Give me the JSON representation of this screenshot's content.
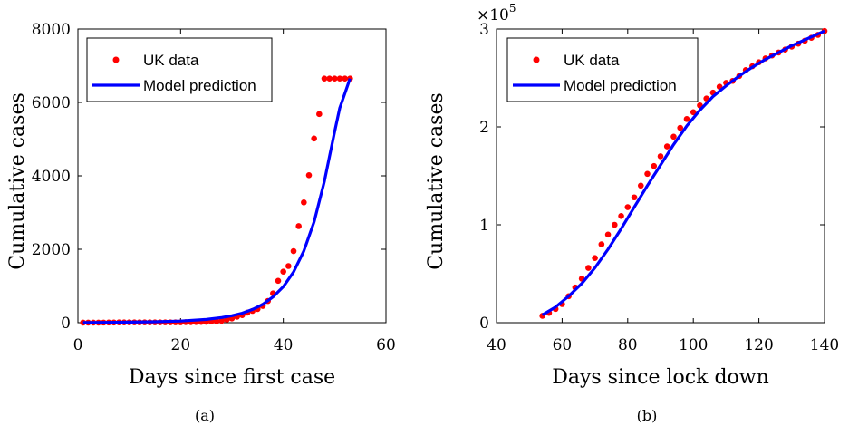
{
  "chart_data": [
    {
      "type": "scatter",
      "panel_label": "(a)",
      "xlabel": "Days since first case",
      "ylabel": "Cumulative cases",
      "xlim": [
        0,
        60
      ],
      "ylim": [
        0,
        8000
      ],
      "xticks": [
        0,
        20,
        40,
        60
      ],
      "yticks": [
        0,
        2000,
        4000,
        6000,
        8000
      ],
      "y_exponent_label": "",
      "grid": false,
      "legend_position": "top-left",
      "series": [
        {
          "name": "UK data",
          "style": "markers",
          "color": "#ff0000",
          "x": [
            1,
            2,
            3,
            4,
            5,
            6,
            7,
            8,
            9,
            10,
            11,
            12,
            13,
            14,
            15,
            16,
            17,
            18,
            19,
            20,
            21,
            22,
            23,
            24,
            25,
            26,
            27,
            28,
            29,
            30,
            31,
            32,
            33,
            34,
            35,
            36,
            37,
            38,
            39,
            40,
            41,
            42,
            43,
            44,
            45,
            46,
            47,
            48,
            49,
            50,
            51,
            52,
            53
          ],
          "y": [
            2,
            2,
            2,
            2,
            3,
            4,
            4,
            8,
            8,
            9,
            9,
            9,
            9,
            9,
            9,
            9,
            9,
            9,
            9,
            9,
            13,
            15,
            16,
            20,
            23,
            36,
            40,
            51,
            85,
            115,
            163,
            206,
            273,
            321,
            373,
            456,
            590,
            798,
            1140,
            1391,
            1543,
            1950,
            2630,
            3277,
            4017,
            5018,
            5683,
            6650,
            6650,
            6650,
            6650,
            6650,
            6650
          ]
        },
        {
          "name": "Model prediction",
          "style": "line",
          "color": "#0000ff",
          "x": [
            1,
            5,
            10,
            15,
            20,
            25,
            28,
            30,
            32,
            34,
            36,
            38,
            40,
            42,
            44,
            46,
            48,
            50,
            51,
            52,
            53
          ],
          "y": [
            5,
            8,
            14,
            25,
            45,
            90,
            140,
            190,
            260,
            360,
            500,
            700,
            980,
            1380,
            1950,
            2750,
            3850,
            5200,
            5850,
            6250,
            6650
          ]
        }
      ]
    },
    {
      "type": "scatter",
      "panel_label": "(b)",
      "xlabel": "Days since lock down",
      "ylabel": "Cumulative cases",
      "xlim": [
        40,
        140
      ],
      "ylim": [
        0,
        3
      ],
      "xticks": [
        40,
        60,
        80,
        100,
        120,
        140
      ],
      "yticks": [
        0,
        1,
        2,
        3
      ],
      "y_exponent_label": "×10",
      "y_exponent_power": "5",
      "grid": false,
      "legend_position": "top-left",
      "series": [
        {
          "name": "UK data",
          "style": "markers",
          "color": "#ff0000",
          "x": [
            54,
            56,
            58,
            60,
            62,
            64,
            66,
            68,
            70,
            72,
            74,
            76,
            78,
            80,
            82,
            84,
            86,
            88,
            90,
            92,
            94,
            96,
            98,
            100,
            102,
            104,
            106,
            108,
            110,
            112,
            114,
            116,
            118,
            120,
            122,
            124,
            126,
            128,
            130,
            132,
            134,
            136,
            138,
            140
          ],
          "y": [
            0.07,
            0.1,
            0.14,
            0.19,
            0.27,
            0.36,
            0.45,
            0.56,
            0.66,
            0.8,
            0.9,
            1.0,
            1.09,
            1.18,
            1.28,
            1.4,
            1.52,
            1.6,
            1.7,
            1.8,
            1.9,
            1.99,
            2.08,
            2.15,
            2.22,
            2.29,
            2.35,
            2.41,
            2.45,
            2.47,
            2.52,
            2.58,
            2.62,
            2.66,
            2.7,
            2.73,
            2.76,
            2.79,
            2.82,
            2.85,
            2.88,
            2.91,
            2.94,
            2.98
          ]
        },
        {
          "name": "Model prediction",
          "style": "line",
          "color": "#0000ff",
          "x": [
            54,
            58,
            62,
            66,
            70,
            74,
            78,
            82,
            86,
            90,
            94,
            98,
            102,
            106,
            110,
            114,
            118,
            122,
            126,
            130,
            134,
            138,
            140
          ],
          "y": [
            0.08,
            0.16,
            0.27,
            0.4,
            0.56,
            0.75,
            0.96,
            1.18,
            1.4,
            1.61,
            1.82,
            2.01,
            2.17,
            2.31,
            2.42,
            2.52,
            2.61,
            2.69,
            2.76,
            2.83,
            2.89,
            2.95,
            2.98
          ]
        }
      ]
    }
  ]
}
